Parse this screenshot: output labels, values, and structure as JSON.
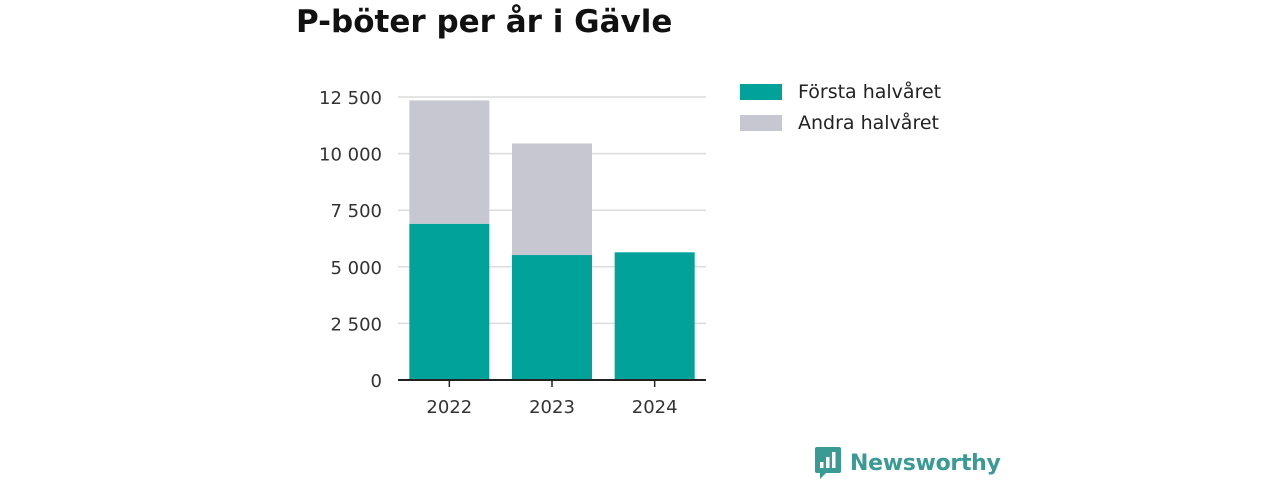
{
  "chart_data": {
    "type": "bar",
    "stacked": true,
    "title": "P-böter per år i Gävle",
    "xlabel": "",
    "ylabel": "",
    "categories": [
      "2022",
      "2023",
      "2024"
    ],
    "series": [
      {
        "name": "Första halvåret",
        "color": "#00a29a",
        "values": [
          6900,
          5520,
          5640
        ]
      },
      {
        "name": "Andra halvåret",
        "color": "#c7c7d1",
        "values": [
          5450,
          4930,
          0
        ]
      }
    ],
    "ylim": [
      0,
      12500
    ],
    "yticks": [
      0,
      2500,
      5000,
      7500,
      10000,
      12500
    ],
    "ytick_labels": [
      "0",
      "2 500",
      "5 000",
      "7 500",
      "10 000",
      "12 500"
    ],
    "grid": true,
    "legend_position": "right"
  },
  "brand": {
    "name": "Newsworthy",
    "icon": "newsworthy-chart-icon",
    "color": "#3a9b94"
  }
}
